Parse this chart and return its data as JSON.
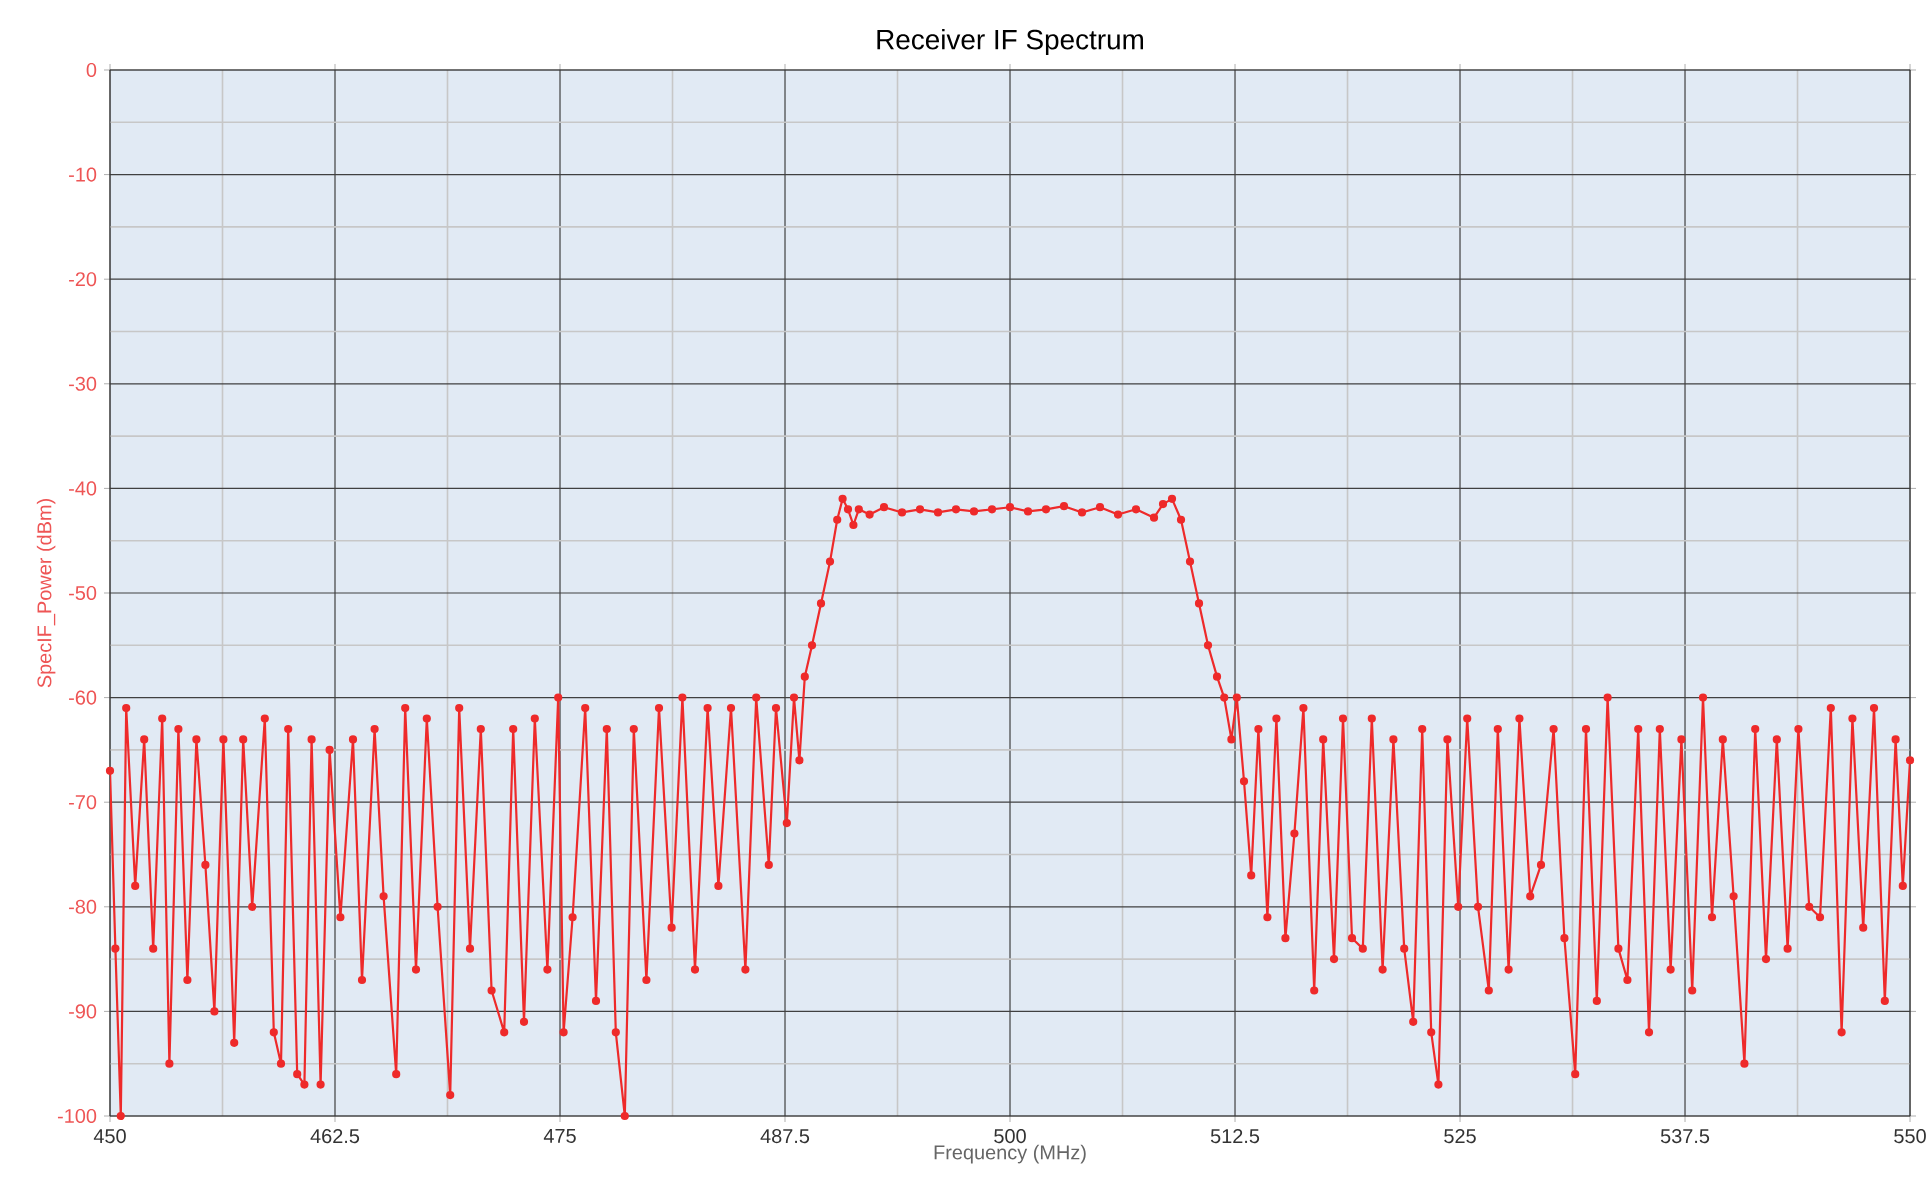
{
  "chart_data": {
    "type": "line",
    "title": "Receiver IF Spectrum",
    "xlabel": "Frequency (MHz)",
    "ylabel": "SpecIF_Power (dBm)",
    "xlim": [
      450,
      550
    ],
    "ylim": [
      -100,
      0
    ],
    "xticks": [
      450,
      462.5,
      475,
      487.5,
      500,
      512.5,
      525,
      537.5,
      550
    ],
    "yticks": [
      -100,
      -90,
      -80,
      -70,
      -60,
      -50,
      -40,
      -30,
      -20,
      -10,
      0
    ],
    "grid": true,
    "marker": "circle",
    "line_style": "solid",
    "series": [
      {
        "color": "#ee2a2a",
        "x": [
          450.0,
          450.3,
          450.6,
          450.9,
          451.4,
          451.9,
          452.4,
          452.9,
          453.3,
          453.8,
          454.3,
          454.8,
          455.3,
          455.8,
          456.3,
          456.9,
          457.4,
          457.9,
          458.6,
          459.1,
          459.5,
          459.9,
          460.4,
          460.8,
          461.2,
          461.7,
          462.2,
          462.8,
          463.5,
          464.0,
          464.7,
          465.2,
          465.9,
          466.4,
          467.0,
          467.6,
          468.2,
          468.9,
          469.4,
          470.0,
          470.6,
          471.2,
          471.9,
          472.4,
          473.0,
          473.6,
          474.3,
          474.9,
          475.2,
          475.7,
          476.4,
          477.0,
          477.6,
          478.1,
          478.6,
          479.1,
          479.8,
          480.5,
          481.2,
          481.8,
          482.5,
          483.2,
          483.8,
          484.5,
          485.3,
          485.9,
          486.6,
          487.0,
          487.6,
          488.0,
          488.3,
          488.6,
          489.0,
          489.5,
          490.0,
          490.4,
          490.7,
          491.0,
          491.3,
          491.6,
          492.2,
          493,
          494,
          495,
          496,
          497,
          498,
          499,
          500,
          501,
          502,
          503,
          504,
          505,
          506,
          507,
          508,
          508.5,
          509,
          509.5,
          510,
          510.5,
          511,
          511.5,
          511.9,
          512.3,
          512.6,
          513.0,
          513.4,
          513.8,
          514.3,
          514.8,
          515.3,
          515.8,
          516.3,
          516.9,
          517.4,
          518.0,
          518.5,
          519.0,
          519.6,
          520.1,
          520.7,
          521.3,
          521.9,
          522.4,
          522.9,
          523.4,
          523.8,
          524.3,
          524.9,
          525.4,
          526.0,
          526.6,
          527.1,
          527.7,
          528.3,
          528.9,
          529.5,
          530.2,
          530.8,
          531.4,
          532.0,
          532.6,
          533.2,
          533.8,
          534.3,
          534.9,
          535.5,
          536.1,
          536.7,
          537.3,
          537.9,
          538.5,
          539.0,
          539.6,
          540.2,
          540.8,
          541.4,
          542.0,
          542.6,
          543.2,
          543.8,
          544.4,
          545.0,
          545.6,
          546.2,
          546.8,
          547.4,
          548.0,
          548.6,
          549.2,
          549.6,
          550.0
        ],
        "values": [
          -67,
          -84,
          -100,
          -61,
          -78,
          -64,
          -84,
          -62,
          -95,
          -63,
          -87,
          -64,
          -76,
          -90,
          -64,
          -93,
          -64,
          -80,
          -62,
          -92,
          -95,
          -63,
          -96,
          -97,
          -64,
          -97,
          -65,
          -81,
          -64,
          -87,
          -63,
          -79,
          -96,
          -61,
          -86,
          -62,
          -80,
          -98,
          -61,
          -84,
          -63,
          -88,
          -92,
          -63,
          -91,
          -62,
          -86,
          -60,
          -92,
          -81,
          -61,
          -89,
          -63,
          -92,
          -100,
          -63,
          -87,
          -61,
          -82,
          -60,
          -86,
          -61,
          -78,
          -61,
          -86,
          -60,
          -76,
          -61,
          -72,
          -60,
          -66,
          -58,
          -55,
          -51,
          -47,
          -43,
          -41,
          -42,
          -43.5,
          -42,
          -42.5,
          -41.8,
          -42.3,
          -42,
          -42.3,
          -42,
          -42.2,
          -42,
          -41.8,
          -42.2,
          -42,
          -41.7,
          -42.3,
          -41.8,
          -42.5,
          -42,
          -42.8,
          -41.5,
          -41,
          -43,
          -47,
          -51,
          -55,
          -58,
          -60,
          -64,
          -60,
          -68,
          -77,
          -63,
          -81,
          -62,
          -83,
          -73,
          -61,
          -88,
          -64,
          -85,
          -62,
          -83,
          -84,
          -62,
          -86,
          -64,
          -84,
          -91,
          -63,
          -92,
          -97,
          -64,
          -80,
          -62,
          -80,
          -88,
          -63,
          -86,
          -62,
          -79,
          -76,
          -63,
          -83,
          -96,
          -63,
          -89,
          -60,
          -84,
          -87,
          -63,
          -92,
          -63,
          -86,
          -64,
          -88,
          -60,
          -81,
          -64,
          -79,
          -95,
          -63,
          -85,
          -64,
          -84,
          -63,
          -80,
          -81,
          -61,
          -92,
          -62,
          -82,
          -61,
          -89,
          -64,
          -78,
          -66
        ]
      }
    ]
  }
}
